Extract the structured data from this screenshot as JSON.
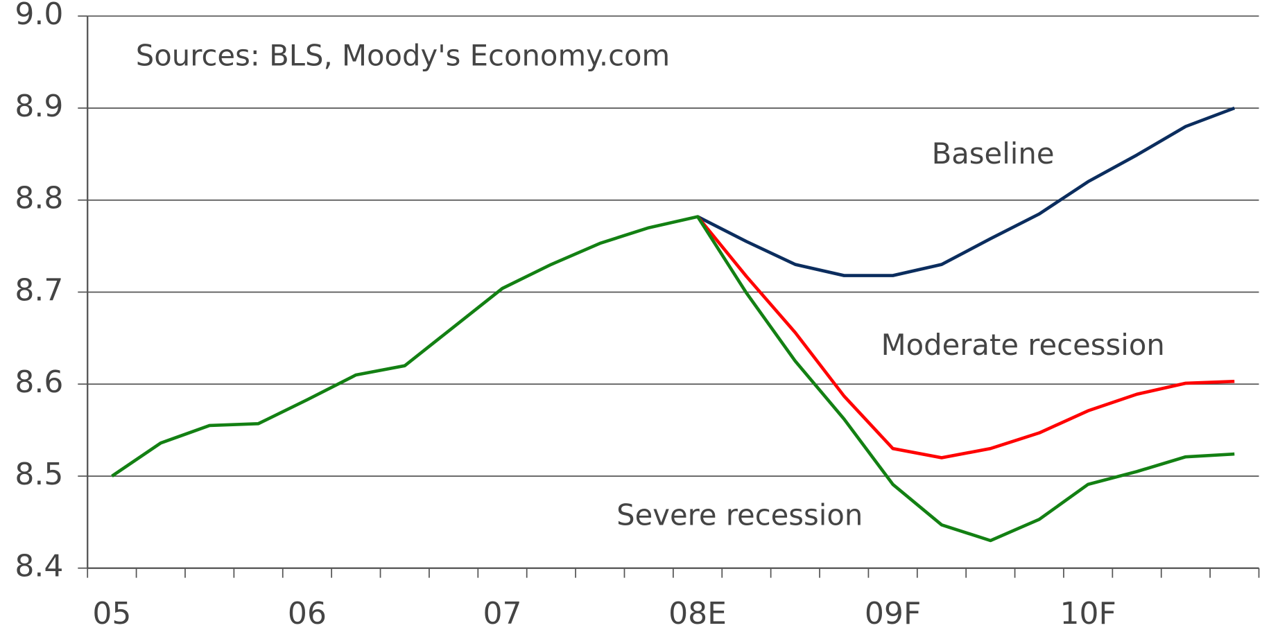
{
  "chart_data": {
    "type": "line",
    "note": "Sources: BLS, Moody's Economy.com",
    "categories": [
      "05",
      null,
      null,
      null,
      "06",
      null,
      null,
      null,
      "07",
      null,
      null,
      null,
      "08E",
      null,
      null,
      null,
      "09F",
      null,
      null,
      null,
      "10F",
      null,
      null,
      null
    ],
    "series": [
      {
        "name": "Baseline",
        "color": "#0b2d5e",
        "values": [
          null,
          null,
          null,
          null,
          null,
          null,
          null,
          null,
          null,
          null,
          null,
          null,
          8.782,
          8.755,
          8.73,
          8.718,
          8.718,
          8.73,
          8.758,
          8.785,
          8.82,
          8.849,
          8.88,
          8.9
        ]
      },
      {
        "name": "Moderate recession",
        "color": "#ff0000",
        "values": [
          null,
          null,
          null,
          null,
          null,
          null,
          null,
          null,
          null,
          null,
          null,
          null,
          8.782,
          8.717,
          8.656,
          8.587,
          8.53,
          8.52,
          8.53,
          8.547,
          8.571,
          8.589,
          8.601,
          8.603
        ]
      },
      {
        "name": "Severe recession",
        "color": "#138013",
        "values": [
          8.5,
          8.536,
          8.555,
          8.557,
          8.583,
          8.61,
          8.62,
          8.662,
          8.704,
          8.73,
          8.753,
          8.77,
          8.782,
          8.699,
          8.625,
          8.562,
          8.491,
          8.447,
          8.43,
          8.453,
          8.491,
          8.505,
          8.521,
          8.524
        ]
      }
    ],
    "ylim": [
      8.4,
      9.0
    ],
    "yticks": [
      8.4,
      8.5,
      8.6,
      8.7,
      8.8,
      8.9,
      {
        "value": 9.0,
        "label": "9.0"
      }
    ],
    "grid": true
  }
}
